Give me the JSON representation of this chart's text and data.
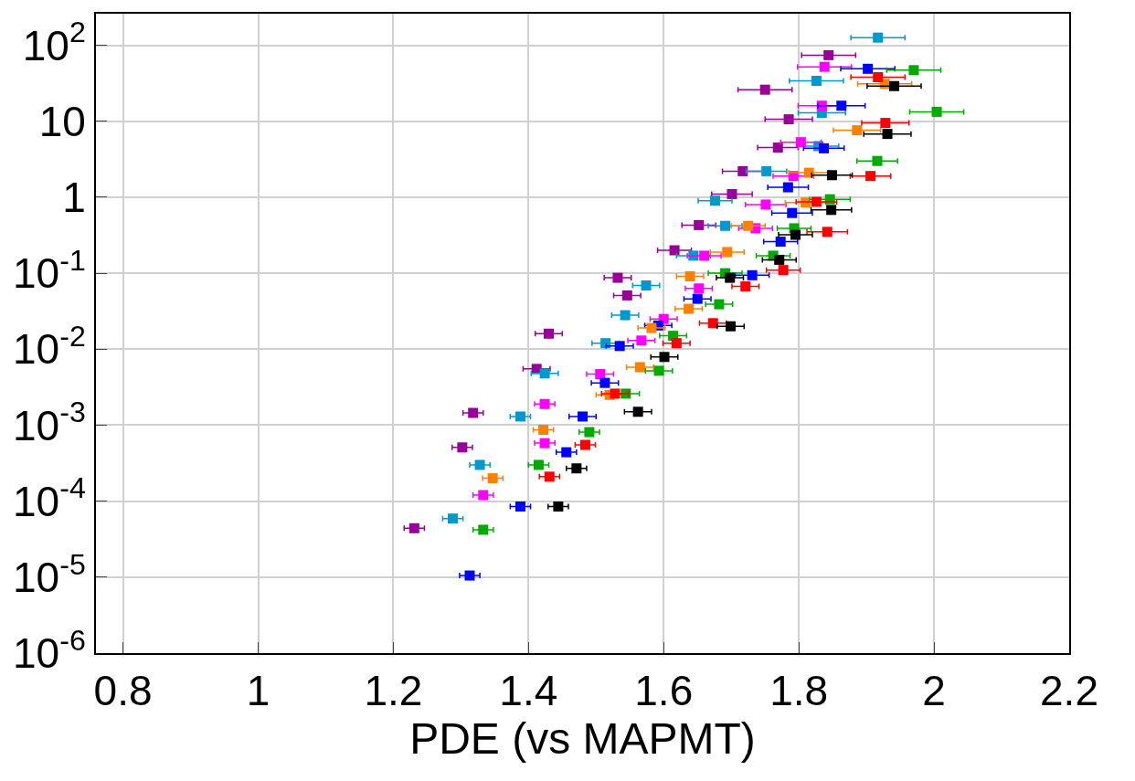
{
  "chart_data": {
    "type": "scatter",
    "xlabel": "PDE (vs MAPMT)",
    "log": "y",
    "grid": true,
    "marker": "square",
    "xlim": [
      0.76,
      2.2
    ],
    "xticks": [
      0.8,
      1,
      1.2,
      1.4,
      1.6,
      1.8,
      2,
      2.2
    ],
    "ylim": [
      1e-06,
      260
    ],
    "yticks": [
      {
        "value": 1e-06,
        "label": "10$^{-6}$"
      },
      {
        "value": 1e-05,
        "label": "10$^{-5}$"
      },
      {
        "value": 0.0001,
        "label": "10$^{-4}$"
      },
      {
        "value": 0.001,
        "label": "10$^{-3}$"
      },
      {
        "value": 0.01,
        "label": "10$^{-2}$"
      },
      {
        "value": 0.1,
        "label": "10$^{-1}$"
      },
      1,
      10,
      {
        "value": 100,
        "label": "10$^{2}$"
      }
    ],
    "series": [
      {
        "color": "#990099",
        "x": [
          1.231,
          1.302,
          1.318,
          1.412,
          1.43,
          1.546,
          1.532,
          1.616,
          1.652,
          1.701,
          1.717,
          1.769,
          1.785,
          1.75,
          1.844
        ],
        "values": [
          4.4e-05,
          0.00051,
          0.00145,
          0.0055,
          0.016,
          0.051,
          0.087,
          0.2,
          0.43,
          1.1,
          2.2,
          4.5,
          10.6,
          26,
          74
        ],
        "xerrors": [
          0.015,
          0.015,
          0.015,
          0.02,
          0.02,
          0.02,
          0.02,
          0.025,
          0.025,
          0.03,
          0.03,
          0.03,
          0.035,
          0.04,
          0.04
        ]
      },
      {
        "color": "#0099cc",
        "x": [
          1.288,
          1.328,
          1.388,
          1.424,
          1.514,
          1.543,
          1.574,
          1.644,
          1.691,
          1.676,
          1.752,
          1.829,
          1.834,
          1.826,
          1.917
        ],
        "values": [
          5.9e-05,
          0.0003,
          0.0013,
          0.0048,
          0.012,
          0.028,
          0.069,
          0.17,
          0.42,
          0.9,
          2.2,
          4.7,
          12.9,
          34,
          126
        ],
        "xerrors": [
          0.015,
          0.015,
          0.015,
          0.02,
          0.02,
          0.02,
          0.02,
          0.025,
          0.025,
          0.025,
          0.03,
          0.03,
          0.035,
          0.04,
          0.04
        ]
      },
      {
        "color": "#ff00ff",
        "x": [
          1.333,
          1.424,
          1.424,
          1.506,
          1.567,
          1.6,
          1.652,
          1.66,
          1.736,
          1.751,
          1.792,
          1.803,
          1.834,
          1.838
        ],
        "values": [
          0.00012,
          0.00058,
          0.0019,
          0.0047,
          0.013,
          0.025,
          0.063,
          0.17,
          0.39,
          0.8,
          1.9,
          5.3,
          16,
          52
        ],
        "xerrors": [
          0.015,
          0.015,
          0.015,
          0.02,
          0.02,
          0.02,
          0.02,
          0.025,
          0.025,
          0.03,
          0.03,
          0.03,
          0.035,
          0.04
        ]
      },
      {
        "color": "#0000ff",
        "x": [
          1.313,
          1.388,
          1.456,
          1.48,
          1.513,
          1.535,
          1.592,
          1.65,
          1.731,
          1.773,
          1.79,
          1.784,
          1.837,
          1.863,
          1.902
        ],
        "values": [
          1.05e-05,
          8.5e-05,
          0.00044,
          0.0013,
          0.0036,
          0.011,
          0.0205,
          0.046,
          0.094,
          0.26,
          0.62,
          1.35,
          4.4,
          16,
          49
        ],
        "xerrors": [
          0.015,
          0.015,
          0.015,
          0.02,
          0.02,
          0.02,
          0.02,
          0.02,
          0.025,
          0.025,
          0.03,
          0.03,
          0.03,
          0.035,
          0.04
        ]
      },
      {
        "color": "#ff8000",
        "x": [
          1.347,
          1.422,
          1.52,
          1.565,
          1.582,
          1.637,
          1.639,
          1.694,
          1.725,
          1.81,
          1.815,
          1.886,
          1.927
        ],
        "values": [
          0.0002,
          0.00087,
          0.0025,
          0.0058,
          0.019,
          0.034,
          0.091,
          0.19,
          0.42,
          0.85,
          2.1,
          7.6,
          31
        ],
        "xerrors": [
          0.015,
          0.015,
          0.02,
          0.02,
          0.02,
          0.02,
          0.02,
          0.025,
          0.025,
          0.03,
          0.03,
          0.035,
          0.04
        ]
      },
      {
        "color": "#00aa00",
        "x": [
          1.333,
          1.415,
          1.49,
          1.544,
          1.593,
          1.614,
          1.682,
          1.691,
          1.762,
          1.793,
          1.846,
          1.916,
          2.004,
          1.97
        ],
        "values": [
          4.2e-05,
          0.0003,
          0.00081,
          0.0026,
          0.0052,
          0.015,
          0.039,
          0.1,
          0.17,
          0.39,
          0.94,
          3,
          13.3,
          47
        ],
        "xerrors": [
          0.015,
          0.015,
          0.015,
          0.02,
          0.02,
          0.02,
          0.02,
          0.025,
          0.025,
          0.025,
          0.03,
          0.03,
          0.04,
          0.04
        ]
      },
      {
        "color": "#ff0000",
        "x": [
          1.431,
          1.484,
          1.528,
          1.619,
          1.673,
          1.721,
          1.777,
          1.826,
          1.842,
          1.906,
          1.928,
          1.917
        ],
        "values": [
          0.00021,
          0.00055,
          0.0026,
          0.012,
          0.022,
          0.067,
          0.11,
          0.87,
          0.35,
          1.9,
          9.5,
          38
        ],
        "xerrors": [
          0.015,
          0.015,
          0.02,
          0.02,
          0.02,
          0.02,
          0.025,
          0.03,
          0.03,
          0.03,
          0.035,
          0.04
        ]
      },
      {
        "color": "#000000",
        "x": [
          1.444,
          1.471,
          1.562,
          1.601,
          1.699,
          1.698,
          1.771,
          1.795,
          1.848,
          1.849,
          1.931,
          1.941
        ],
        "values": [
          8.5e-05,
          0.00027,
          0.0015,
          0.0079,
          0.02,
          0.087,
          0.15,
          0.32,
          0.68,
          1.95,
          6.8,
          29
        ],
        "xerrors": [
          0.015,
          0.015,
          0.02,
          0.02,
          0.02,
          0.02,
          0.025,
          0.025,
          0.03,
          0.03,
          0.035,
          0.04
        ]
      }
    ]
  }
}
